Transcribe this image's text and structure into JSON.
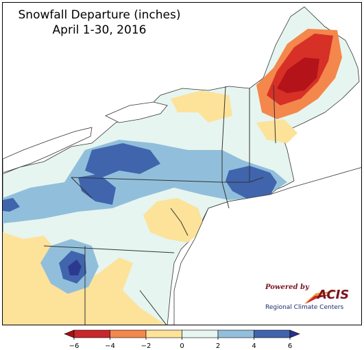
{
  "title": {
    "line1": "Snowfall Departure (inches)",
    "line2": "April 1-30, 2016"
  },
  "logo": {
    "powered_by": "Powered by",
    "name": "ACIS",
    "tagline": "Regional Climate Centers"
  },
  "legend": {
    "ticks": [
      "−6",
      "−4",
      "−2",
      "0",
      "2",
      "4",
      "6"
    ],
    "colors": [
      "#c9262c",
      "#f4874c",
      "#fde29a",
      "#e6f5ef",
      "#91bfdb",
      "#4065ad"
    ],
    "arrow_low": "#a50f15",
    "arrow_high": "#2b2f8f"
  },
  "map_colors": {
    "below_6": "#b4131a",
    "minus_4_to_6": "#d73027",
    "minus_2_to_4": "#f4874c",
    "zero_to_minus_2": "#fde29a",
    "zero_to_2": "#e6f5ef",
    "two_to_4": "#91bfdb",
    "four_to_6": "#4065ad",
    "above_6": "#2b3a8f",
    "lake": "#ffffff",
    "boundary": "#333333"
  }
}
